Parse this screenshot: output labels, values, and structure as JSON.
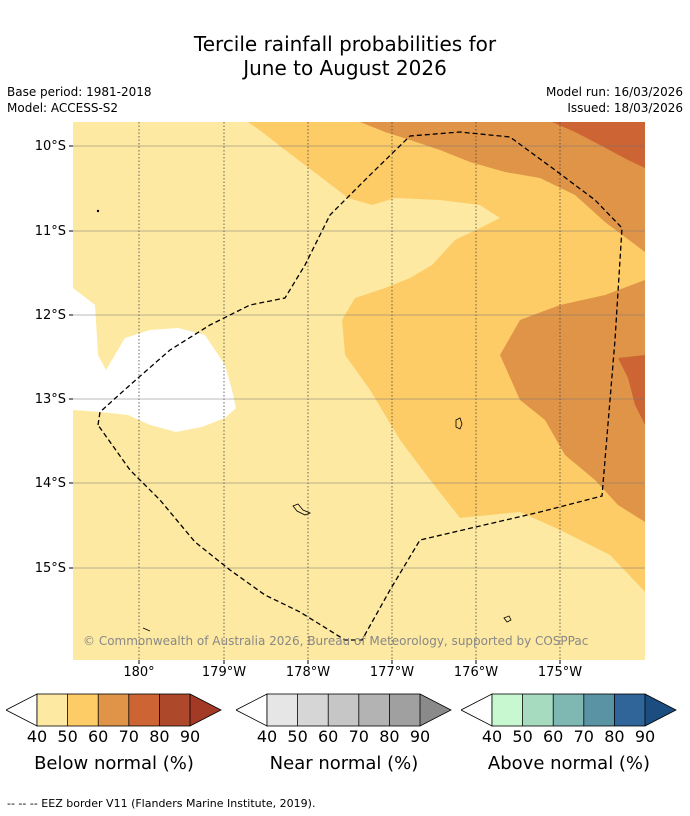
{
  "title": {
    "line1": "Tercile rainfall probabilities for",
    "line2": "June to August 2026"
  },
  "meta": {
    "base_period": "Base period: 1981-2018",
    "model": "Model: ACCESS-S2",
    "model_run": "Model run: 16/03/2026",
    "issued": "Issued: 18/03/2026"
  },
  "axes": {
    "latitude_labels": [
      "10°S",
      "11°S",
      "12°S",
      "13°S",
      "14°S",
      "15°S"
    ],
    "longitude_labels": [
      "180°",
      "179°W",
      "178°W",
      "177°W",
      "176°W",
      "175°W"
    ]
  },
  "map": {
    "copyright": "© Commonwealth of Australia 2026, Bureau of Meteorology, supported by COSPPac",
    "colors": {
      "below_40_50": "#fde9a1",
      "below_50_60": "#fdcc66",
      "below_60_70": "#e09448",
      "below_70_80": "#cc6433",
      "white": "#ffffff",
      "grid": "#333333",
      "eez": "#000000"
    }
  },
  "legend": {
    "ticks": [
      "40",
      "50",
      "60",
      "70",
      "80",
      "90"
    ],
    "below": {
      "label": "Below normal (%)",
      "colors": [
        "#fde9a1",
        "#fdcc66",
        "#e09448",
        "#cc6433",
        "#ad482a",
        "#a33a26"
      ]
    },
    "near": {
      "label": "Near normal (%)",
      "colors": [
        "#e6e6e6",
        "#d6d6d6",
        "#c6c6c6",
        "#b3b3b3",
        "#a0a0a0",
        "#8a8a8a"
      ]
    },
    "above": {
      "label": "Above normal (%)",
      "colors": [
        "#c8f8d0",
        "#a6dbbf",
        "#7fb8b3",
        "#5a93a4",
        "#2f6599",
        "#1b4d80"
      ]
    }
  },
  "footnote": "--  --  -- EEZ border V11 (Flanders Marine Institute, 2019)."
}
